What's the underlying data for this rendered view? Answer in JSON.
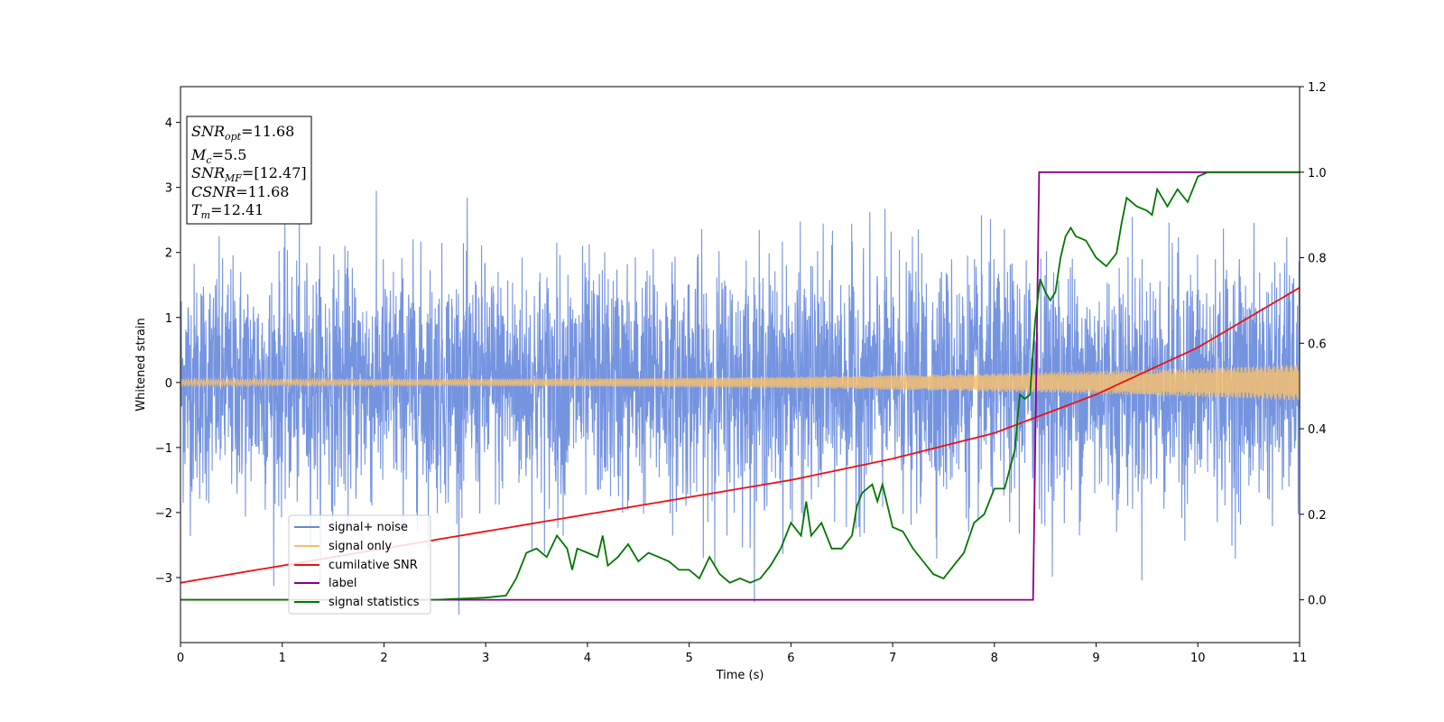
{
  "chart_data": {
    "type": "line",
    "xlabel": "Time (s)",
    "ylabel": "Whitened strain",
    "xlim": [
      0,
      11
    ],
    "ylim_left": [
      -4,
      4.55
    ],
    "ylim_right": [
      -0.1,
      1.2
    ],
    "xticks": [
      "0",
      "1",
      "2",
      "3",
      "4",
      "5",
      "6",
      "7",
      "8",
      "9",
      "10",
      "11"
    ],
    "yticks_left": [
      "−3",
      "−2",
      "−1",
      "0",
      "1",
      "2",
      "3",
      "4"
    ],
    "yticks_right": [
      "0.0",
      "0.2",
      "0.4",
      "0.6",
      "0.8",
      "1.0",
      "1.2"
    ],
    "grid": false,
    "legend": {
      "location": "lower-left",
      "entries": [
        "signal+ noise",
        "signal only",
        "cumilative SNR",
        "label",
        "signal statistics"
      ]
    },
    "annotation": {
      "lines": [
        {
          "base": "SNR",
          "sub": "opt",
          "value": "=11.68"
        },
        {
          "base": "M",
          "sub": "c",
          "value": "=5.5"
        },
        {
          "base": "SNR",
          "sub": "MF",
          "value": "=[12.47]"
        },
        {
          "base": "CSNR",
          "sub": "",
          "value": "=11.68"
        },
        {
          "base": "T",
          "sub": "m",
          "value": "=12.41"
        }
      ]
    },
    "series": [
      {
        "name": "signal+ noise",
        "axis": "left",
        "color": "#6688dd",
        "description_samples": {
          "noise_sigma": 0.9,
          "spike_max": 4.18,
          "spike_min": -3.57
        }
      },
      {
        "name": "signal only",
        "axis": "left",
        "color": "#f5c070",
        "amplitude_start": 0.05,
        "amplitude_end": 0.28
      },
      {
        "name": "cumilative SNR",
        "axis": "right",
        "color": "#ee1111",
        "x": [
          0,
          1,
          2,
          3,
          4,
          5,
          6,
          7,
          8,
          9,
          10,
          11
        ],
        "y": [
          0.04,
          0.08,
          0.12,
          0.16,
          0.2,
          0.24,
          0.28,
          0.33,
          0.39,
          0.48,
          0.59,
          0.73
        ]
      },
      {
        "name": "label",
        "axis": "right",
        "color": "#880088",
        "x": [
          0,
          8.38,
          8.44,
          11
        ],
        "y": [
          0,
          0,
          1,
          1
        ]
      },
      {
        "name": "signal statistics",
        "axis": "right",
        "color": "#007700",
        "x": [
          0,
          2.5,
          3.0,
          3.2,
          3.3,
          3.4,
          3.5,
          3.6,
          3.7,
          3.8,
          3.85,
          3.9,
          4.0,
          4.1,
          4.15,
          4.2,
          4.3,
          4.4,
          4.5,
          4.6,
          4.7,
          4.8,
          4.9,
          5.0,
          5.1,
          5.2,
          5.3,
          5.4,
          5.5,
          5.6,
          5.7,
          5.8,
          5.9,
          6.0,
          6.1,
          6.15,
          6.2,
          6.3,
          6.4,
          6.5,
          6.6,
          6.65,
          6.7,
          6.8,
          6.85,
          6.9,
          7.0,
          7.1,
          7.2,
          7.3,
          7.4,
          7.5,
          7.6,
          7.7,
          7.8,
          7.9,
          8.0,
          8.1,
          8.2,
          8.25,
          8.3,
          8.35,
          8.4,
          8.45,
          8.5,
          8.55,
          8.6,
          8.65,
          8.7,
          8.75,
          8.8,
          8.9,
          9.0,
          9.1,
          9.2,
          9.25,
          9.3,
          9.4,
          9.5,
          9.55,
          9.6,
          9.7,
          9.8,
          9.9,
          10.0,
          10.1,
          10.2,
          10.4,
          11.0
        ],
        "y": [
          0,
          0,
          0.005,
          0.01,
          0.05,
          0.11,
          0.12,
          0.1,
          0.15,
          0.12,
          0.07,
          0.12,
          0.11,
          0.1,
          0.15,
          0.08,
          0.1,
          0.13,
          0.09,
          0.11,
          0.1,
          0.09,
          0.07,
          0.07,
          0.05,
          0.1,
          0.06,
          0.04,
          0.05,
          0.04,
          0.05,
          0.08,
          0.12,
          0.18,
          0.15,
          0.23,
          0.15,
          0.18,
          0.12,
          0.12,
          0.15,
          0.22,
          0.25,
          0.27,
          0.23,
          0.27,
          0.17,
          0.16,
          0.12,
          0.09,
          0.06,
          0.05,
          0.08,
          0.11,
          0.18,
          0.2,
          0.26,
          0.26,
          0.35,
          0.48,
          0.47,
          0.48,
          0.65,
          0.75,
          0.72,
          0.7,
          0.72,
          0.8,
          0.85,
          0.87,
          0.85,
          0.84,
          0.8,
          0.78,
          0.81,
          0.88,
          0.94,
          0.92,
          0.91,
          0.9,
          0.96,
          0.92,
          0.96,
          0.93,
          0.99,
          1.0,
          1.0,
          1.0,
          1.0
        ]
      }
    ]
  }
}
